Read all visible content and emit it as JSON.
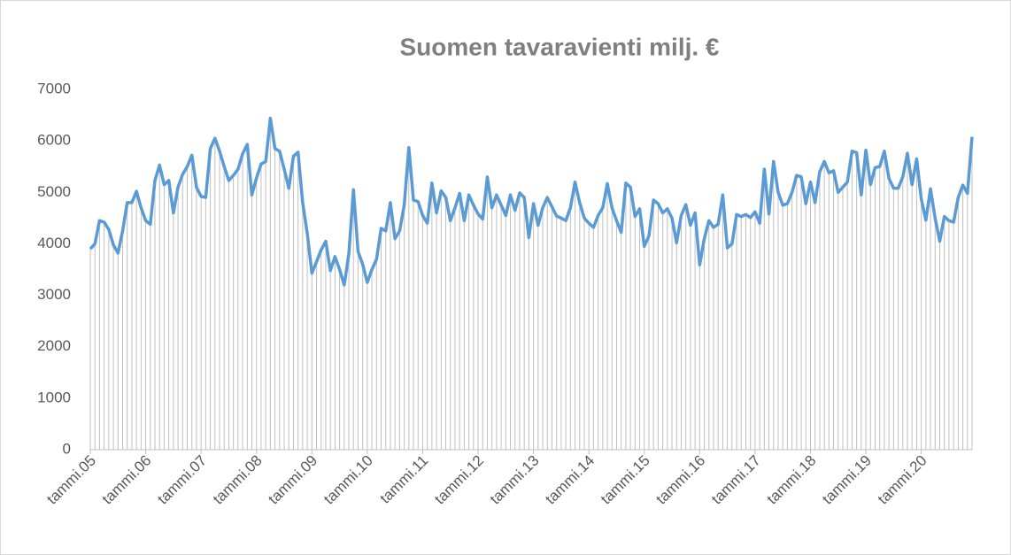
{
  "chart_data": {
    "type": "line",
    "title": "Suomen tavaravienti milj. €",
    "categories": [
      "tammi.05",
      null,
      null,
      null,
      null,
      null,
      null,
      null,
      null,
      null,
      null,
      null,
      "tammi.06",
      null,
      null,
      null,
      null,
      null,
      null,
      null,
      null,
      null,
      null,
      null,
      "tammi.07",
      null,
      null,
      null,
      null,
      null,
      null,
      null,
      null,
      null,
      null,
      null,
      "tammi.08",
      null,
      null,
      null,
      null,
      null,
      null,
      null,
      null,
      null,
      null,
      null,
      "tammi.09",
      null,
      null,
      null,
      null,
      null,
      null,
      null,
      null,
      null,
      null,
      null,
      "tammi.10",
      null,
      null,
      null,
      null,
      null,
      null,
      null,
      null,
      null,
      null,
      null,
      "tammi.11",
      null,
      null,
      null,
      null,
      null,
      null,
      null,
      null,
      null,
      null,
      null,
      "tammi.12",
      null,
      null,
      null,
      null,
      null,
      null,
      null,
      null,
      null,
      null,
      null,
      "tammi.13",
      null,
      null,
      null,
      null,
      null,
      null,
      null,
      null,
      null,
      null,
      null,
      "tammi.14",
      null,
      null,
      null,
      null,
      null,
      null,
      null,
      null,
      null,
      null,
      null,
      "tammi.15",
      null,
      null,
      null,
      null,
      null,
      null,
      null,
      null,
      null,
      null,
      null,
      "tammi.16",
      null,
      null,
      null,
      null,
      null,
      null,
      null,
      null,
      null,
      null,
      null,
      "tammi.17",
      null,
      null,
      null,
      null,
      null,
      null,
      null,
      null,
      null,
      null,
      null,
      "tammi.18",
      null,
      null,
      null,
      null,
      null,
      null,
      null,
      null,
      null,
      null,
      null,
      "tammi.19",
      null,
      null,
      null,
      null,
      null,
      null,
      null,
      null,
      null,
      null,
      null,
      "tammi.20",
      null,
      null,
      null,
      null,
      null,
      null,
      null,
      null,
      null,
      null,
      null
    ],
    "values": [
      3900,
      4000,
      4450,
      4420,
      4280,
      3980,
      3820,
      4250,
      4800,
      4800,
      5020,
      4700,
      4450,
      4380,
      5230,
      5530,
      5150,
      5230,
      4600,
      5100,
      5350,
      5500,
      5720,
      5100,
      4920,
      4900,
      5850,
      6050,
      5800,
      5500,
      5230,
      5330,
      5450,
      5750,
      5930,
      4950,
      5280,
      5550,
      5600,
      6440,
      5850,
      5800,
      5450,
      5080,
      5700,
      5780,
      4800,
      4200,
      3430,
      3650,
      3880,
      4050,
      3480,
      3750,
      3500,
      3200,
      3800,
      5050,
      3850,
      3600,
      3250,
      3500,
      3700,
      4300,
      4250,
      4800,
      4100,
      4250,
      4750,
      5870,
      4850,
      4820,
      4550,
      4400,
      5180,
      4600,
      5030,
      4900,
      4450,
      4700,
      4980,
      4450,
      4950,
      4750,
      4580,
      4480,
      5300,
      4700,
      4950,
      4750,
      4550,
      4950,
      4650,
      4990,
      4900,
      4120,
      4780,
      4360,
      4700,
      4900,
      4720,
      4540,
      4500,
      4450,
      4700,
      5200,
      4800,
      4500,
      4400,
      4320,
      4550,
      4700,
      5170,
      4700,
      4450,
      4220,
      5180,
      5100,
      4530,
      4680,
      3950,
      4150,
      4850,
      4780,
      4600,
      4680,
      4500,
      4020,
      4550,
      4760,
      4360,
      4600,
      3590,
      4100,
      4450,
      4320,
      4380,
      4950,
      3920,
      4000,
      4570,
      4530,
      4570,
      4510,
      4620,
      4400,
      5450,
      4580,
      5600,
      5000,
      4750,
      4780,
      5000,
      5330,
      5300,
      4780,
      5200,
      4800,
      5400,
      5600,
      5380,
      5420,
      5000,
      5100,
      5200,
      5800,
      5770,
      4950,
      5820,
      5150,
      5480,
      5500,
      5800,
      5270,
      5080,
      5080,
      5300,
      5760,
      5150,
      5650,
      4870,
      4460,
      5070,
      4500,
      4050,
      4530,
      4450,
      4420,
      4900,
      5140,
      4980,
      6080
    ],
    "color": "#5b9bd5",
    "drop_color": "#bfbfbf",
    "ylim": [
      0,
      7000
    ],
    "yticks": [
      0,
      1000,
      2000,
      3000,
      4000,
      5000,
      6000,
      7000
    ],
    "grid": false
  }
}
